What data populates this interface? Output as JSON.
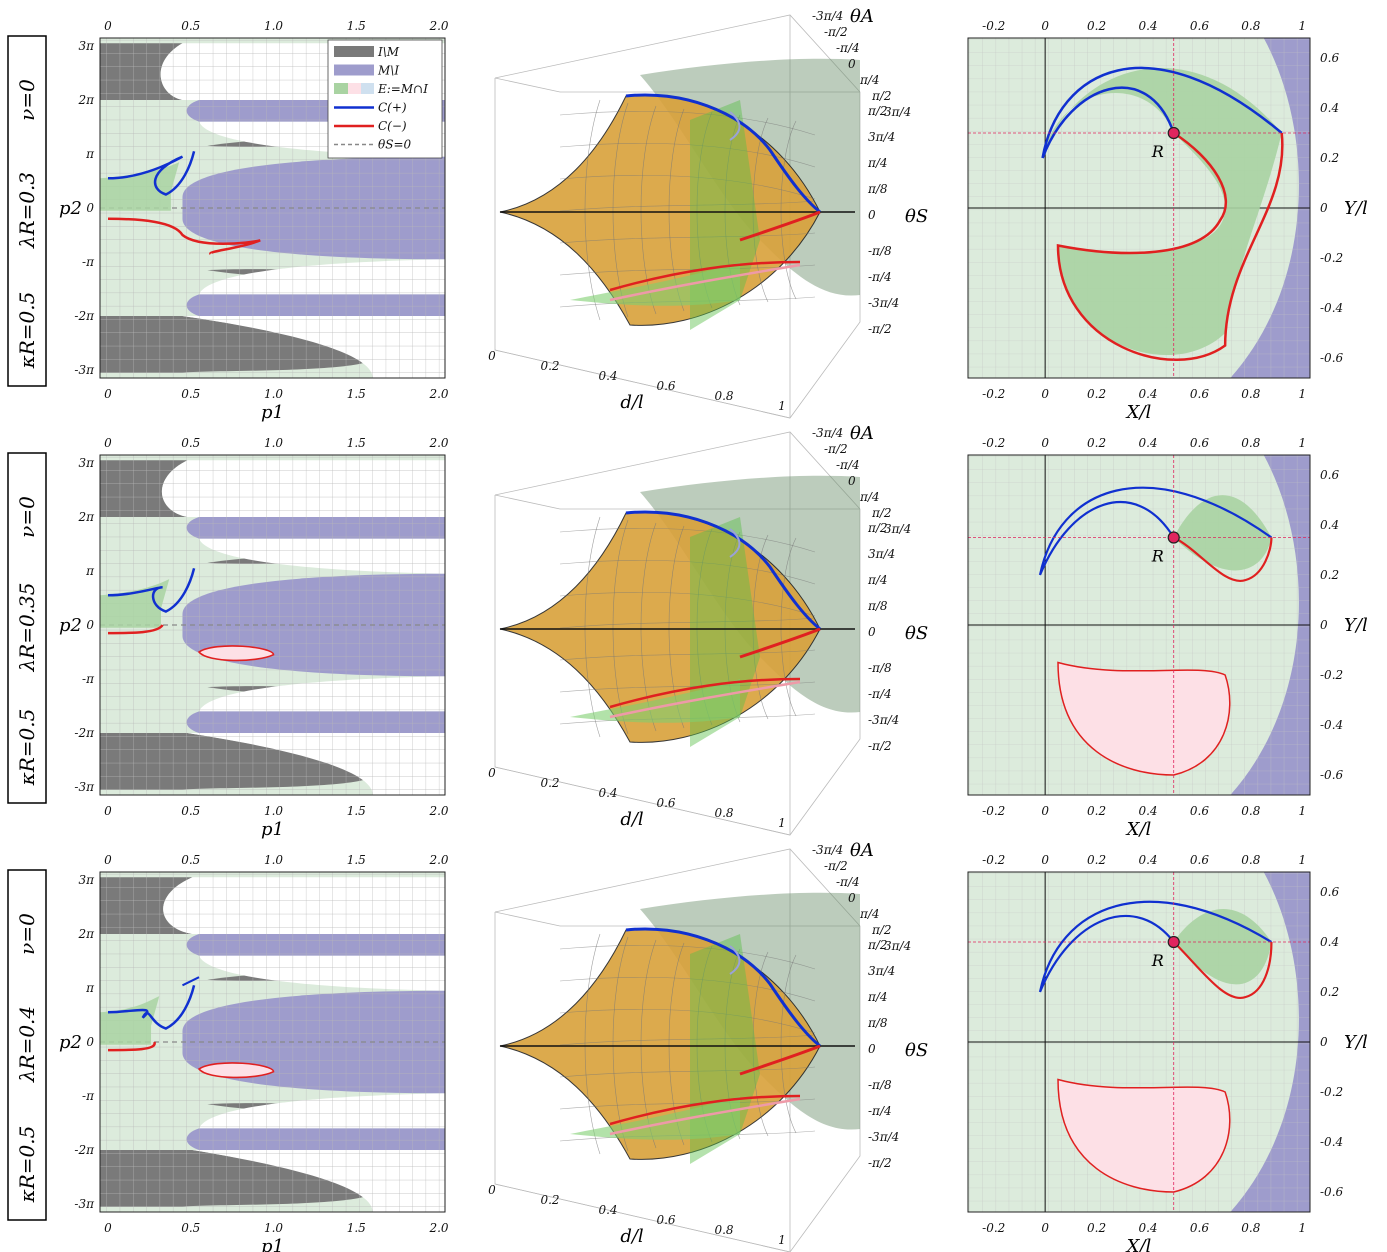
{
  "rows": [
    {
      "nu_label": "ν=0",
      "lambda_label": "λR=0.3",
      "kappa_label": "κR=0.5"
    },
    {
      "nu_label": "ν=0",
      "lambda_label": "λR=0.35",
      "kappa_label": "κR=0.5"
    },
    {
      "nu_label": "ν=0",
      "lambda_label": "λR=0.4",
      "kappa_label": "κR=0.5"
    }
  ],
  "legend": {
    "items": [
      "I\\M",
      "M\\I",
      "E:=M∩I",
      "C(+)",
      "C(−)",
      "θS=0"
    ]
  },
  "colors": {
    "gray_region": "#7a7a7a",
    "purple_region": "#9e9ccc",
    "green_bg": "#dcebdc",
    "green_region": "#a9d3a2",
    "pink_region": "#fde0e6",
    "blue_curve": "#1030d0",
    "red_curve": "#e02020",
    "pink_curve": "#ee9aa8",
    "orange_surface": "#d9a13a",
    "marker": "#e0245e"
  },
  "chart_data": [
    {
      "type": "area",
      "panel": "phase-plane",
      "xlabel": "p1",
      "ylabel": "p2",
      "xlim": [
        0,
        2.0
      ],
      "x_ticks": [
        "0",
        "0.5",
        "1.0",
        "1.5",
        "2.0"
      ],
      "y_ticks": [
        "-3π",
        "-2π",
        "-π",
        "0",
        "π",
        "2π",
        "3π"
      ]
    },
    {
      "type": "area",
      "panel": "3d-surface",
      "xlabel": "d/l",
      "zlabel": "θS",
      "ylabel": "θA",
      "x_ticks": [
        "0",
        "0.2",
        "0.4",
        "0.6",
        "0.8",
        "1"
      ],
      "z_ticks": [
        "π/2",
        "3π/4",
        "π/4",
        "π/8",
        "0",
        "-π/8",
        "-π/4",
        "-3π/4",
        "-π/2"
      ],
      "y_ticks": [
        "-3π/4",
        "-π/2",
        "-π/4",
        "0",
        "π/4",
        "π/2",
        "3π/4"
      ]
    },
    {
      "type": "area",
      "panel": "workspace",
      "xlabel": "X/l",
      "ylabel": "Y/l",
      "x_ticks": [
        "-0.2",
        "0",
        "0.2",
        "0.4",
        "0.6",
        "0.8",
        "1"
      ],
      "y_ticks": [
        "0.6",
        "0.4",
        "0.2",
        "0",
        "-0.2",
        "-0.4",
        "-0.6"
      ],
      "marker_label": "R"
    }
  ]
}
